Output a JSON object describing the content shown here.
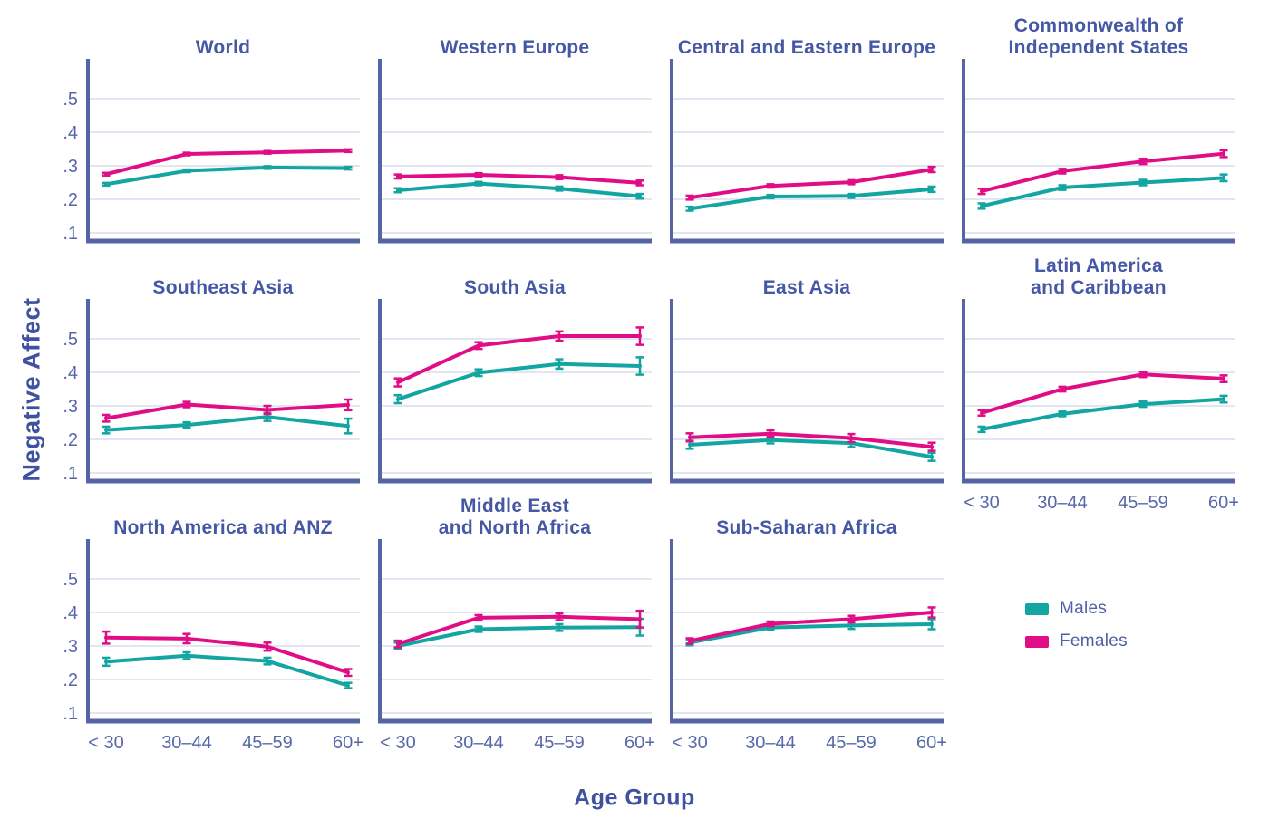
{
  "chart_data": {
    "type": "line",
    "xlabel": "Age Group",
    "ylabel": "Negative Affect",
    "x_categories": [
      "< 30",
      "30–44",
      "45–59",
      "60+"
    ],
    "ytick_labels": [
      ".5",
      ".4",
      ".3",
      ".2",
      ".1"
    ],
    "ytick_values": [
      0.5,
      0.4,
      0.3,
      0.2,
      0.1
    ],
    "ylim": [
      0.05,
      0.6
    ],
    "grid": "horizontal-only",
    "legend_position": "bottom-right",
    "legend": [
      {
        "name": "Males",
        "color": "#12A5A1"
      },
      {
        "name": "Females",
        "color": "#E00D86"
      }
    ],
    "colors": {
      "axis": "#5464A4",
      "grid": "#D9DDEE",
      "tick": "#5767A9",
      "title": "#4557A5"
    },
    "panels": [
      {
        "id": "world",
        "title": "World",
        "title_lines": [
          "World"
        ],
        "show_y": true,
        "show_x": false,
        "males": [
          0.245,
          0.285,
          0.295,
          0.293
        ],
        "females": [
          0.275,
          0.335,
          0.34,
          0.345
        ],
        "males_err": [
          0.004,
          0.004,
          0.004,
          0.004
        ],
        "females_err": [
          0.004,
          0.004,
          0.004,
          0.004
        ]
      },
      {
        "id": "western-europe",
        "title": "Western Europe",
        "title_lines": [
          "Western Europe"
        ],
        "show_y": false,
        "show_x": false,
        "males": [
          0.227,
          0.247,
          0.232,
          0.209
        ],
        "females": [
          0.268,
          0.273,
          0.266,
          0.249
        ],
        "males_err": [
          0.006,
          0.005,
          0.006,
          0.007
        ],
        "females_err": [
          0.006,
          0.005,
          0.006,
          0.007
        ]
      },
      {
        "id": "central-eastern-europe",
        "title": "Central and Eastern Europe",
        "title_lines": [
          "Central and Eastern Europe"
        ],
        "show_y": false,
        "show_x": false,
        "males": [
          0.172,
          0.208,
          0.21,
          0.23
        ],
        "females": [
          0.205,
          0.24,
          0.251,
          0.289
        ],
        "males_err": [
          0.006,
          0.005,
          0.006,
          0.008
        ],
        "females_err": [
          0.006,
          0.005,
          0.006,
          0.008
        ]
      },
      {
        "id": "cis",
        "title": "Commonwealth of Independent States",
        "title_lines": [
          "Commonwealth of",
          "Independent States"
        ],
        "show_y": false,
        "show_x": false,
        "males": [
          0.18,
          0.235,
          0.25,
          0.264
        ],
        "females": [
          0.224,
          0.284,
          0.313,
          0.336
        ],
        "males_err": [
          0.008,
          0.007,
          0.008,
          0.01
        ],
        "females_err": [
          0.008,
          0.007,
          0.008,
          0.01
        ]
      },
      {
        "id": "southeast-asia",
        "title": "Southeast Asia",
        "title_lines": [
          "Southeast Asia"
        ],
        "show_y": true,
        "show_x": false,
        "males": [
          0.228,
          0.243,
          0.267,
          0.24
        ],
        "females": [
          0.263,
          0.304,
          0.288,
          0.303
        ],
        "males_err": [
          0.01,
          0.008,
          0.012,
          0.022
        ],
        "females_err": [
          0.01,
          0.008,
          0.012,
          0.016
        ]
      },
      {
        "id": "south-asia",
        "title": "South Asia",
        "title_lines": [
          "South Asia"
        ],
        "show_y": false,
        "show_x": false,
        "males": [
          0.32,
          0.399,
          0.425,
          0.419
        ],
        "females": [
          0.37,
          0.48,
          0.508,
          0.508
        ],
        "males_err": [
          0.012,
          0.01,
          0.014,
          0.026
        ],
        "females_err": [
          0.012,
          0.01,
          0.014,
          0.026
        ]
      },
      {
        "id": "east-asia",
        "title": "East Asia",
        "title_lines": [
          "East Asia"
        ],
        "show_y": false,
        "show_x": false,
        "males": [
          0.184,
          0.198,
          0.189,
          0.148
        ],
        "females": [
          0.206,
          0.217,
          0.204,
          0.178
        ],
        "males_err": [
          0.012,
          0.01,
          0.012,
          0.012
        ],
        "females_err": [
          0.012,
          0.01,
          0.012,
          0.012
        ]
      },
      {
        "id": "latin-america-caribbean",
        "title": "Latin America and Caribbean",
        "title_lines": [
          "Latin America",
          "and Caribbean"
        ],
        "show_y": false,
        "show_x": true,
        "males": [
          0.23,
          0.276,
          0.305,
          0.32
        ],
        "females": [
          0.279,
          0.35,
          0.394,
          0.381
        ],
        "males_err": [
          0.008,
          0.007,
          0.008,
          0.01
        ],
        "females_err": [
          0.008,
          0.007,
          0.008,
          0.01
        ]
      },
      {
        "id": "north-america-anz",
        "title": "North America and ANZ",
        "title_lines": [
          "North America and ANZ"
        ],
        "show_y": true,
        "show_x": true,
        "males": [
          0.253,
          0.271,
          0.255,
          0.182
        ],
        "females": [
          0.325,
          0.322,
          0.298,
          0.221
        ],
        "males_err": [
          0.012,
          0.01,
          0.01,
          0.008
        ],
        "females_err": [
          0.018,
          0.014,
          0.012,
          0.01
        ]
      },
      {
        "id": "mena",
        "title": "Middle East and North Africa",
        "title_lines": [
          "Middle East",
          "and North Africa"
        ],
        "show_y": false,
        "show_x": true,
        "males": [
          0.3,
          0.35,
          0.355,
          0.356
        ],
        "females": [
          0.306,
          0.384,
          0.387,
          0.38
        ],
        "males_err": [
          0.01,
          0.008,
          0.01,
          0.025
        ],
        "females_err": [
          0.01,
          0.008,
          0.01,
          0.025
        ]
      },
      {
        "id": "sub-saharan-africa",
        "title": "Sub-Saharan Africa",
        "title_lines": [
          "Sub-Saharan Africa"
        ],
        "show_y": false,
        "show_x": true,
        "males": [
          0.31,
          0.355,
          0.361,
          0.365
        ],
        "females": [
          0.315,
          0.366,
          0.38,
          0.4
        ],
        "males_err": [
          0.008,
          0.007,
          0.01,
          0.015
        ],
        "females_err": [
          0.008,
          0.007,
          0.01,
          0.015
        ]
      }
    ]
  }
}
